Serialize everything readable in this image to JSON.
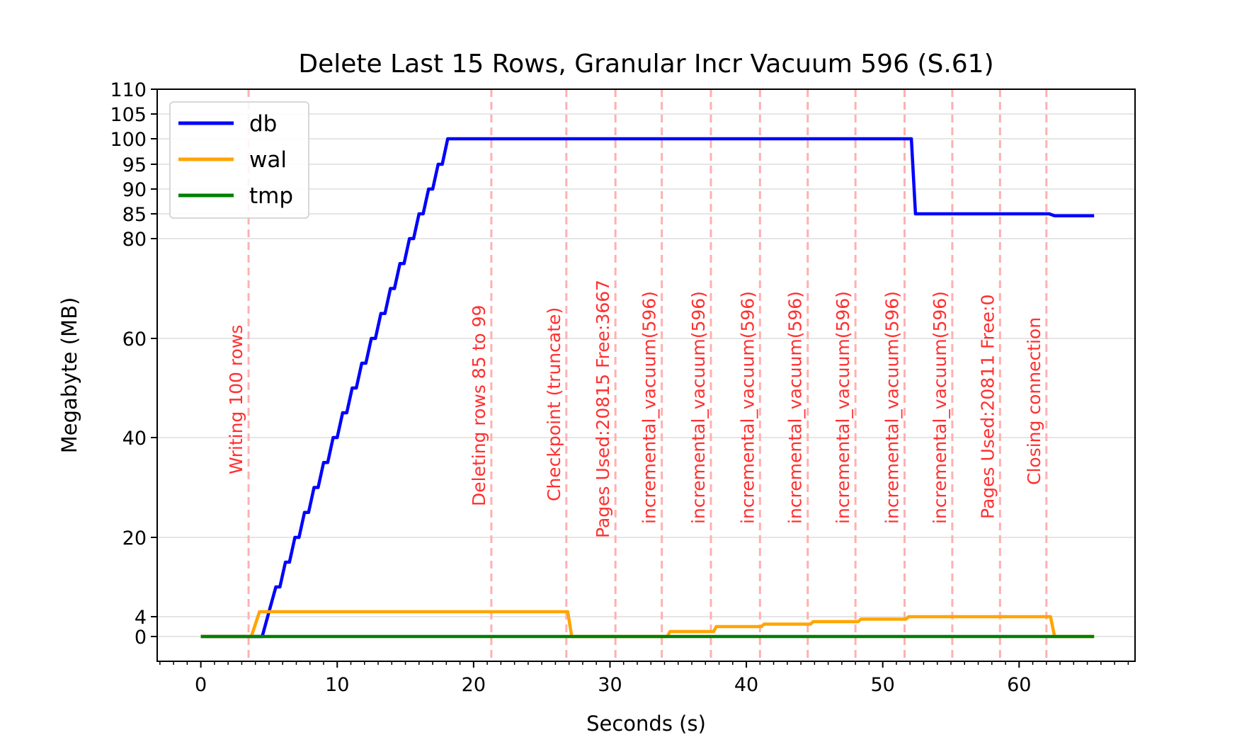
{
  "chart_data": {
    "type": "line",
    "title": "Delete Last 15 Rows, Granular Incr Vacuum 596 (S.61)",
    "xlabel": "Seconds (s)",
    "ylabel": "Megabyte (MB)",
    "xlim": [
      -3.2,
      68.5
    ],
    "ylim": [
      -5,
      110
    ],
    "x_ticks": [
      0,
      10,
      20,
      30,
      40,
      50,
      60
    ],
    "x_minor_step": 1,
    "y_ticks": [
      0,
      4,
      20,
      40,
      60,
      80,
      85,
      90,
      95,
      100,
      105,
      110
    ],
    "grid": "horizontal",
    "legend": {
      "placement": "top-left",
      "entries": [
        "db",
        "wal",
        "tmp"
      ]
    },
    "series": [
      {
        "name": "db",
        "color": "#0000ff",
        "points": [
          [
            0,
            0
          ],
          [
            4.5,
            0
          ],
          [
            5.0,
            5
          ],
          [
            5.5,
            10
          ],
          [
            5.8,
            10
          ],
          [
            6.2,
            15
          ],
          [
            6.5,
            15
          ],
          [
            6.9,
            20
          ],
          [
            7.2,
            20
          ],
          [
            7.6,
            25
          ],
          [
            7.9,
            25
          ],
          [
            8.3,
            30
          ],
          [
            8.6,
            30
          ],
          [
            9.0,
            35
          ],
          [
            9.3,
            35
          ],
          [
            9.7,
            40
          ],
          [
            10.0,
            40
          ],
          [
            10.4,
            45
          ],
          [
            10.7,
            45
          ],
          [
            11.1,
            50
          ],
          [
            11.4,
            50
          ],
          [
            11.8,
            55
          ],
          [
            12.1,
            55
          ],
          [
            12.5,
            60
          ],
          [
            12.8,
            60
          ],
          [
            13.2,
            65
          ],
          [
            13.5,
            65
          ],
          [
            13.9,
            70
          ],
          [
            14.2,
            70
          ],
          [
            14.6,
            75
          ],
          [
            14.9,
            75
          ],
          [
            15.3,
            80
          ],
          [
            15.6,
            80
          ],
          [
            16.0,
            85
          ],
          [
            16.3,
            85
          ],
          [
            16.7,
            90
          ],
          [
            17.0,
            90
          ],
          [
            17.4,
            95
          ],
          [
            17.7,
            95
          ],
          [
            18.1,
            100
          ],
          [
            52.1,
            100
          ],
          [
            52.4,
            85
          ],
          [
            62.2,
            85
          ],
          [
            62.6,
            84.6
          ],
          [
            65.5,
            84.6
          ]
        ]
      },
      {
        "name": "wal",
        "color": "#ffa500",
        "points": [
          [
            0,
            0
          ],
          [
            3.7,
            0
          ],
          [
            4.3,
            5
          ],
          [
            26.9,
            5
          ],
          [
            27.2,
            0
          ],
          [
            34.2,
            0
          ],
          [
            34.4,
            1
          ],
          [
            37.6,
            1
          ],
          [
            37.8,
            2
          ],
          [
            41.1,
            2
          ],
          [
            41.3,
            2.5
          ],
          [
            44.7,
            2.5
          ],
          [
            44.9,
            3
          ],
          [
            48.2,
            3
          ],
          [
            48.4,
            3.5
          ],
          [
            51.7,
            3.5
          ],
          [
            51.9,
            4
          ],
          [
            62.3,
            4
          ],
          [
            62.6,
            0
          ],
          [
            65.5,
            0
          ]
        ]
      },
      {
        "name": "tmp",
        "color": "#008000",
        "points": [
          [
            0,
            0
          ],
          [
            65.5,
            0
          ]
        ]
      }
    ],
    "annotations": [
      {
        "x": 3.5,
        "label": "Writing 100 rows"
      },
      {
        "x": 21.3,
        "label": "Deleting rows 85 to 99"
      },
      {
        "x": 26.8,
        "label": "Checkpoint (truncate)"
      },
      {
        "x": 30.4,
        "label": "Pages Used:20815 Free:3667"
      },
      {
        "x": 33.8,
        "label": "incremental_vacuum(596)"
      },
      {
        "x": 37.4,
        "label": "incremental_vacuum(596)"
      },
      {
        "x": 41.0,
        "label": "incremental_vacuum(596)"
      },
      {
        "x": 44.5,
        "label": "incremental_vacuum(596)"
      },
      {
        "x": 48.0,
        "label": "incremental_vacuum(596)"
      },
      {
        "x": 51.6,
        "label": "incremental_vacuum(596)"
      },
      {
        "x": 55.1,
        "label": "incremental_vacuum(596)"
      },
      {
        "x": 58.6,
        "label": "Pages Used:20811 Free:0"
      },
      {
        "x": 62.0,
        "label": "Closing connection"
      }
    ],
    "colors": {
      "annotation_line": "#ffb0b0",
      "annotation_text": "#ff3030",
      "grid": "#dddddd"
    }
  }
}
